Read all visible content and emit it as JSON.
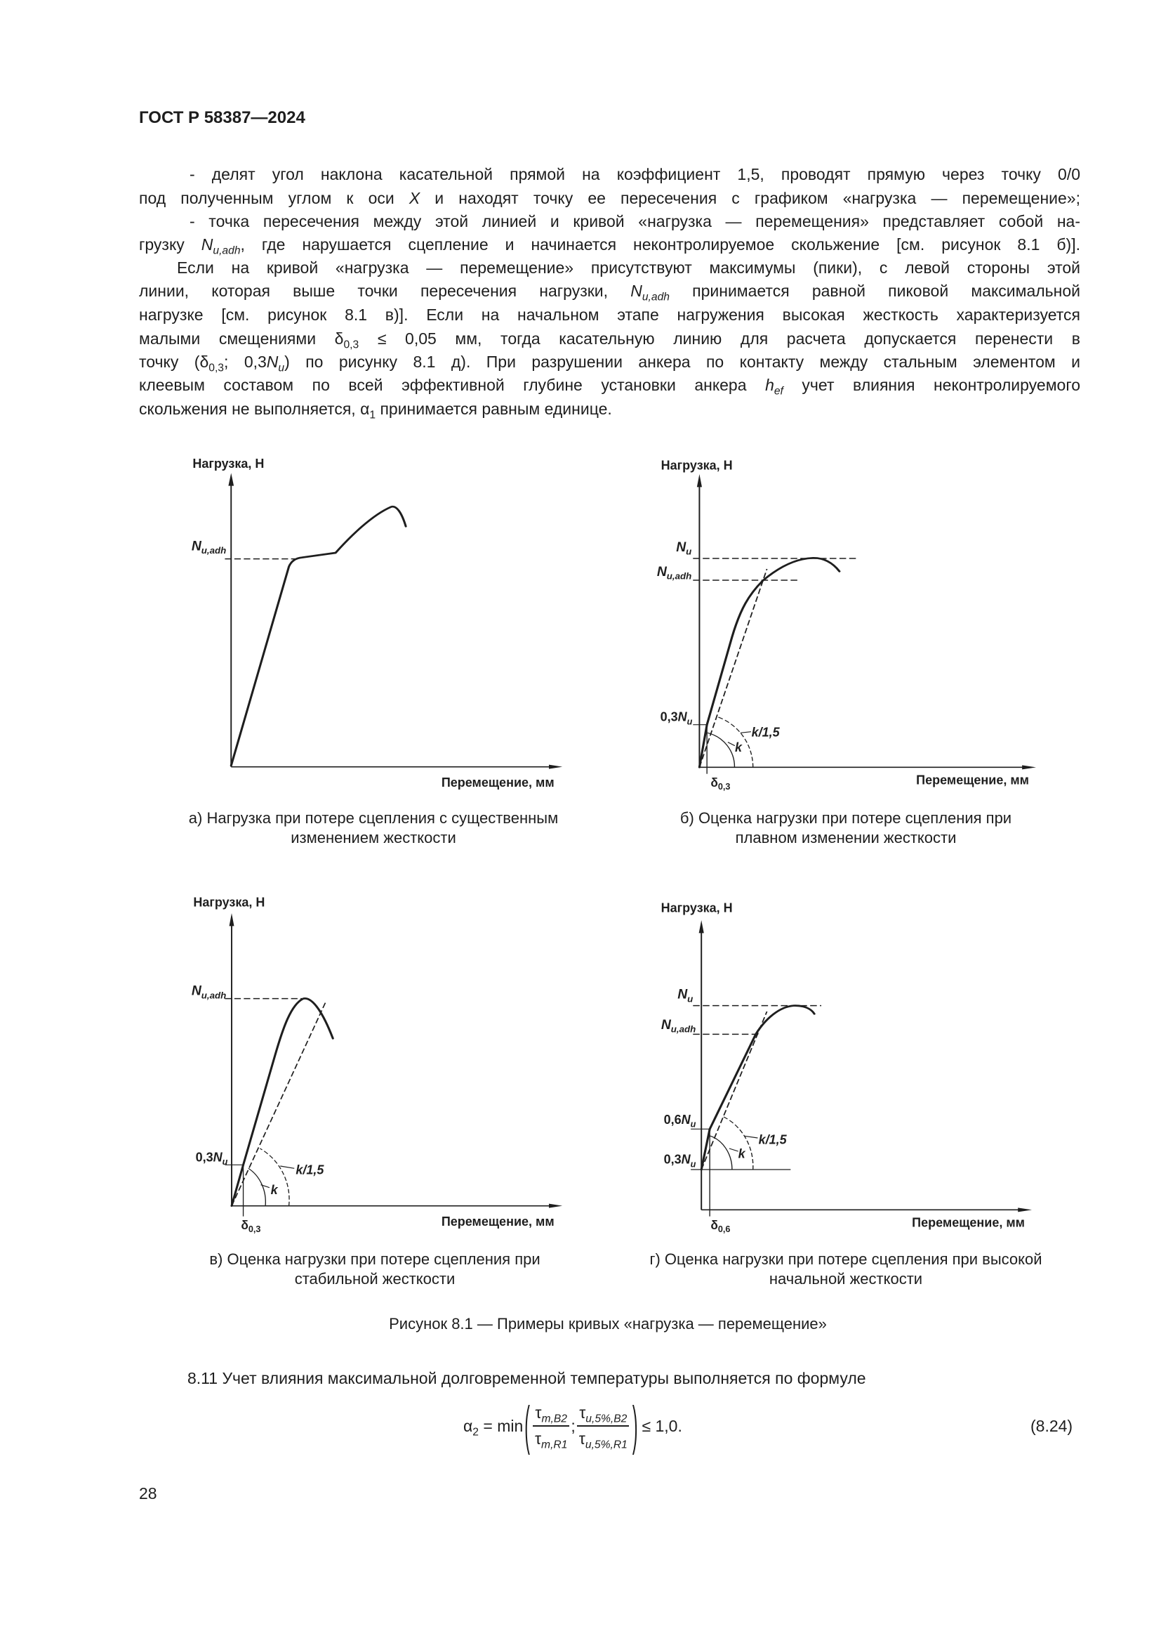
{
  "header": {
    "doc_code": "ГОСТ Р 58387—2024"
  },
  "body": {
    "lines": [
      {
        "indent": true,
        "segs": [
          {
            "text": "- делят угол наклона касательной прямой на коэффициент 1,5, проводят прямую через точку 0/0"
          }
        ]
      },
      {
        "segs": [
          {
            "text": "под полученным углом к оси "
          },
          {
            "text": "X",
            "italic": true
          },
          {
            "text": " и находят точку ее пересечения с графиком «нагрузка — перемещение»;"
          }
        ]
      },
      {
        "indent": true,
        "segs": [
          {
            "text": "- точка пересечения между этой линией и кривой «нагрузка — перемещения» представляет собой на-"
          }
        ]
      },
      {
        "segs": [
          {
            "text": "грузку "
          },
          {
            "text": "N",
            "italic": true,
            "sub": "u,adh"
          },
          {
            "text": ", где нарушается сцепление и начинается неконтролируемое скольжение [см. рисунок 8.1 б)]."
          }
        ]
      },
      {
        "indent_small": true,
        "segs": [
          {
            "text": "Если на кривой «нагрузка — перемещение» присутствуют максимумы (пики), с левой стороны этой"
          }
        ]
      },
      {
        "segs": [
          {
            "text": "линии, которая выше точки пересечения нагрузки, "
          },
          {
            "text": "N",
            "italic": true,
            "sub": "u,adh"
          },
          {
            "text": " принимается равной пиковой максимальной"
          }
        ]
      },
      {
        "segs": [
          {
            "text": "нагрузке [см. рисунок 8.1 в)]. Если на начальном этапе нагружения высокая жесткость характеризуется"
          }
        ]
      },
      {
        "segs": [
          {
            "text": "малыми смещениями "
          },
          {
            "text": "δ",
            "sub": "0,3"
          },
          {
            "text": " ≤ 0,05 мм, тогда касательную линию для расчета допускается перенести в"
          }
        ]
      },
      {
        "segs": [
          {
            "text": "точку ("
          },
          {
            "text": "δ",
            "sub": "0,3"
          },
          {
            "text": "; 0,3"
          },
          {
            "text": "N",
            "italic": true,
            "sub": "u"
          },
          {
            "text": ") по рисунку 8.1 д). При разрушении анкера по контакту между стальным элементом и"
          }
        ]
      },
      {
        "segs": [
          {
            "text": "клеевым составом по всей эффективной глубине установки анкера "
          },
          {
            "text": "h",
            "italic": true,
            "sub": "ef"
          },
          {
            "text": " учет влияния неконтролируемого"
          }
        ]
      },
      {
        "last": true,
        "segs": [
          {
            "text": "скольжения не выполняется, "
          },
          {
            "text": "α",
            "sub": "1"
          },
          {
            "text": " принимается равным единице."
          }
        ]
      }
    ]
  },
  "figures": {
    "y_axis_label": "Нагрузка, Н",
    "x_axis_label": "Перемещение, мм",
    "N": "N",
    "sub_u": "u",
    "sub_uadh": "u,adh",
    "n03_prefix": "0,3",
    "n06_prefix": "0,6",
    "k": "k",
    "k15": "k/1,5",
    "delta": "δ",
    "sub_03": "0,3",
    "sub_06": "0,6",
    "captions": {
      "a": [
        "а) Нагрузка при потере сцепления с существенным",
        "изменением жесткости"
      ],
      "b": [
        "б) Оценка нагрузки при потере сцепления при",
        "плавном изменении жесткости"
      ],
      "v": [
        "в) Оценка нагрузки при потере сцепления при",
        "стабильной жесткости"
      ],
      "g": [
        "г) Оценка нагрузки при потере сцепления при высокой",
        "начальной жесткости"
      ]
    },
    "figure_caption": "Рисунок 8.1 — Примеры кривых «нагрузка — перемещение»"
  },
  "section": {
    "intro": "8.11 Учет влияния максимальной долговременной температуры выполняется по формуле"
  },
  "formula": {
    "lhs": "α",
    "lhs_sub": "2",
    "eq": " = min",
    "f1_num": "τ",
    "f1_num_sub": "m,B2",
    "f1_den": "τ",
    "f1_den_sub": "m,R1",
    "sep": ";",
    "f2_num": "τ",
    "f2_num_sub": "u,5%,B2",
    "f2_den": "τ",
    "f2_den_sub": "u,5%,R1",
    "rhs": "≤ 1,0.",
    "number": "(8.24)"
  },
  "page_number": "28"
}
